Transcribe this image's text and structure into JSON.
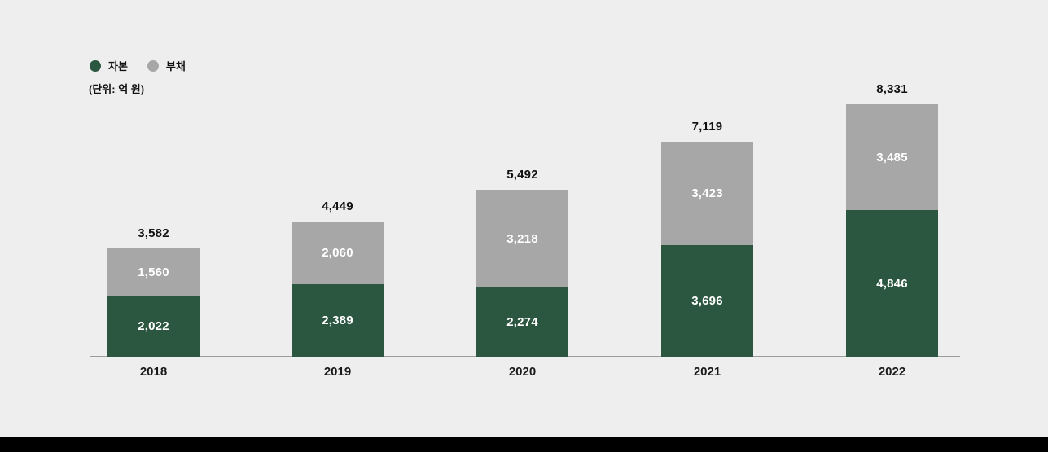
{
  "page": {
    "background_color": "#eeeeee",
    "footer_bar_color": "#000000"
  },
  "legend": {
    "items": [
      {
        "key": "capital",
        "label": "자본",
        "color": "#2b5640"
      },
      {
        "key": "debt",
        "label": "부채",
        "color": "#a7a7a7"
      }
    ]
  },
  "unit_label": "(단위: 억 원)",
  "chart_data": {
    "type": "bar",
    "stacked": true,
    "title": "",
    "unit": "억 원",
    "categories": [
      "2018",
      "2019",
      "2020",
      "2021",
      "2022"
    ],
    "series": [
      {
        "key": "capital",
        "name": "자본",
        "color": "#2b5640",
        "values": [
          2022,
          2389,
          2274,
          3696,
          4846
        ],
        "labels": [
          "2,022",
          "2,389",
          "2,274",
          "3,696",
          "4,846"
        ]
      },
      {
        "key": "debt",
        "name": "부채",
        "color": "#a7a7a7",
        "values": [
          1560,
          2060,
          3218,
          3423,
          3485
        ],
        "labels": [
          "1,560",
          "2,060",
          "3,218",
          "3,423",
          "3,485"
        ]
      }
    ],
    "totals": [
      3582,
      4449,
      5492,
      7119,
      8331
    ],
    "total_labels": [
      "3,582",
      "4,449",
      "5,492",
      "7,119",
      "8,331"
    ],
    "legend_position": "top-left",
    "grid": false,
    "value_text_color": "#ffffff",
    "total_text_color": "#121212",
    "axis_line_color": "#9c9c9c"
  }
}
